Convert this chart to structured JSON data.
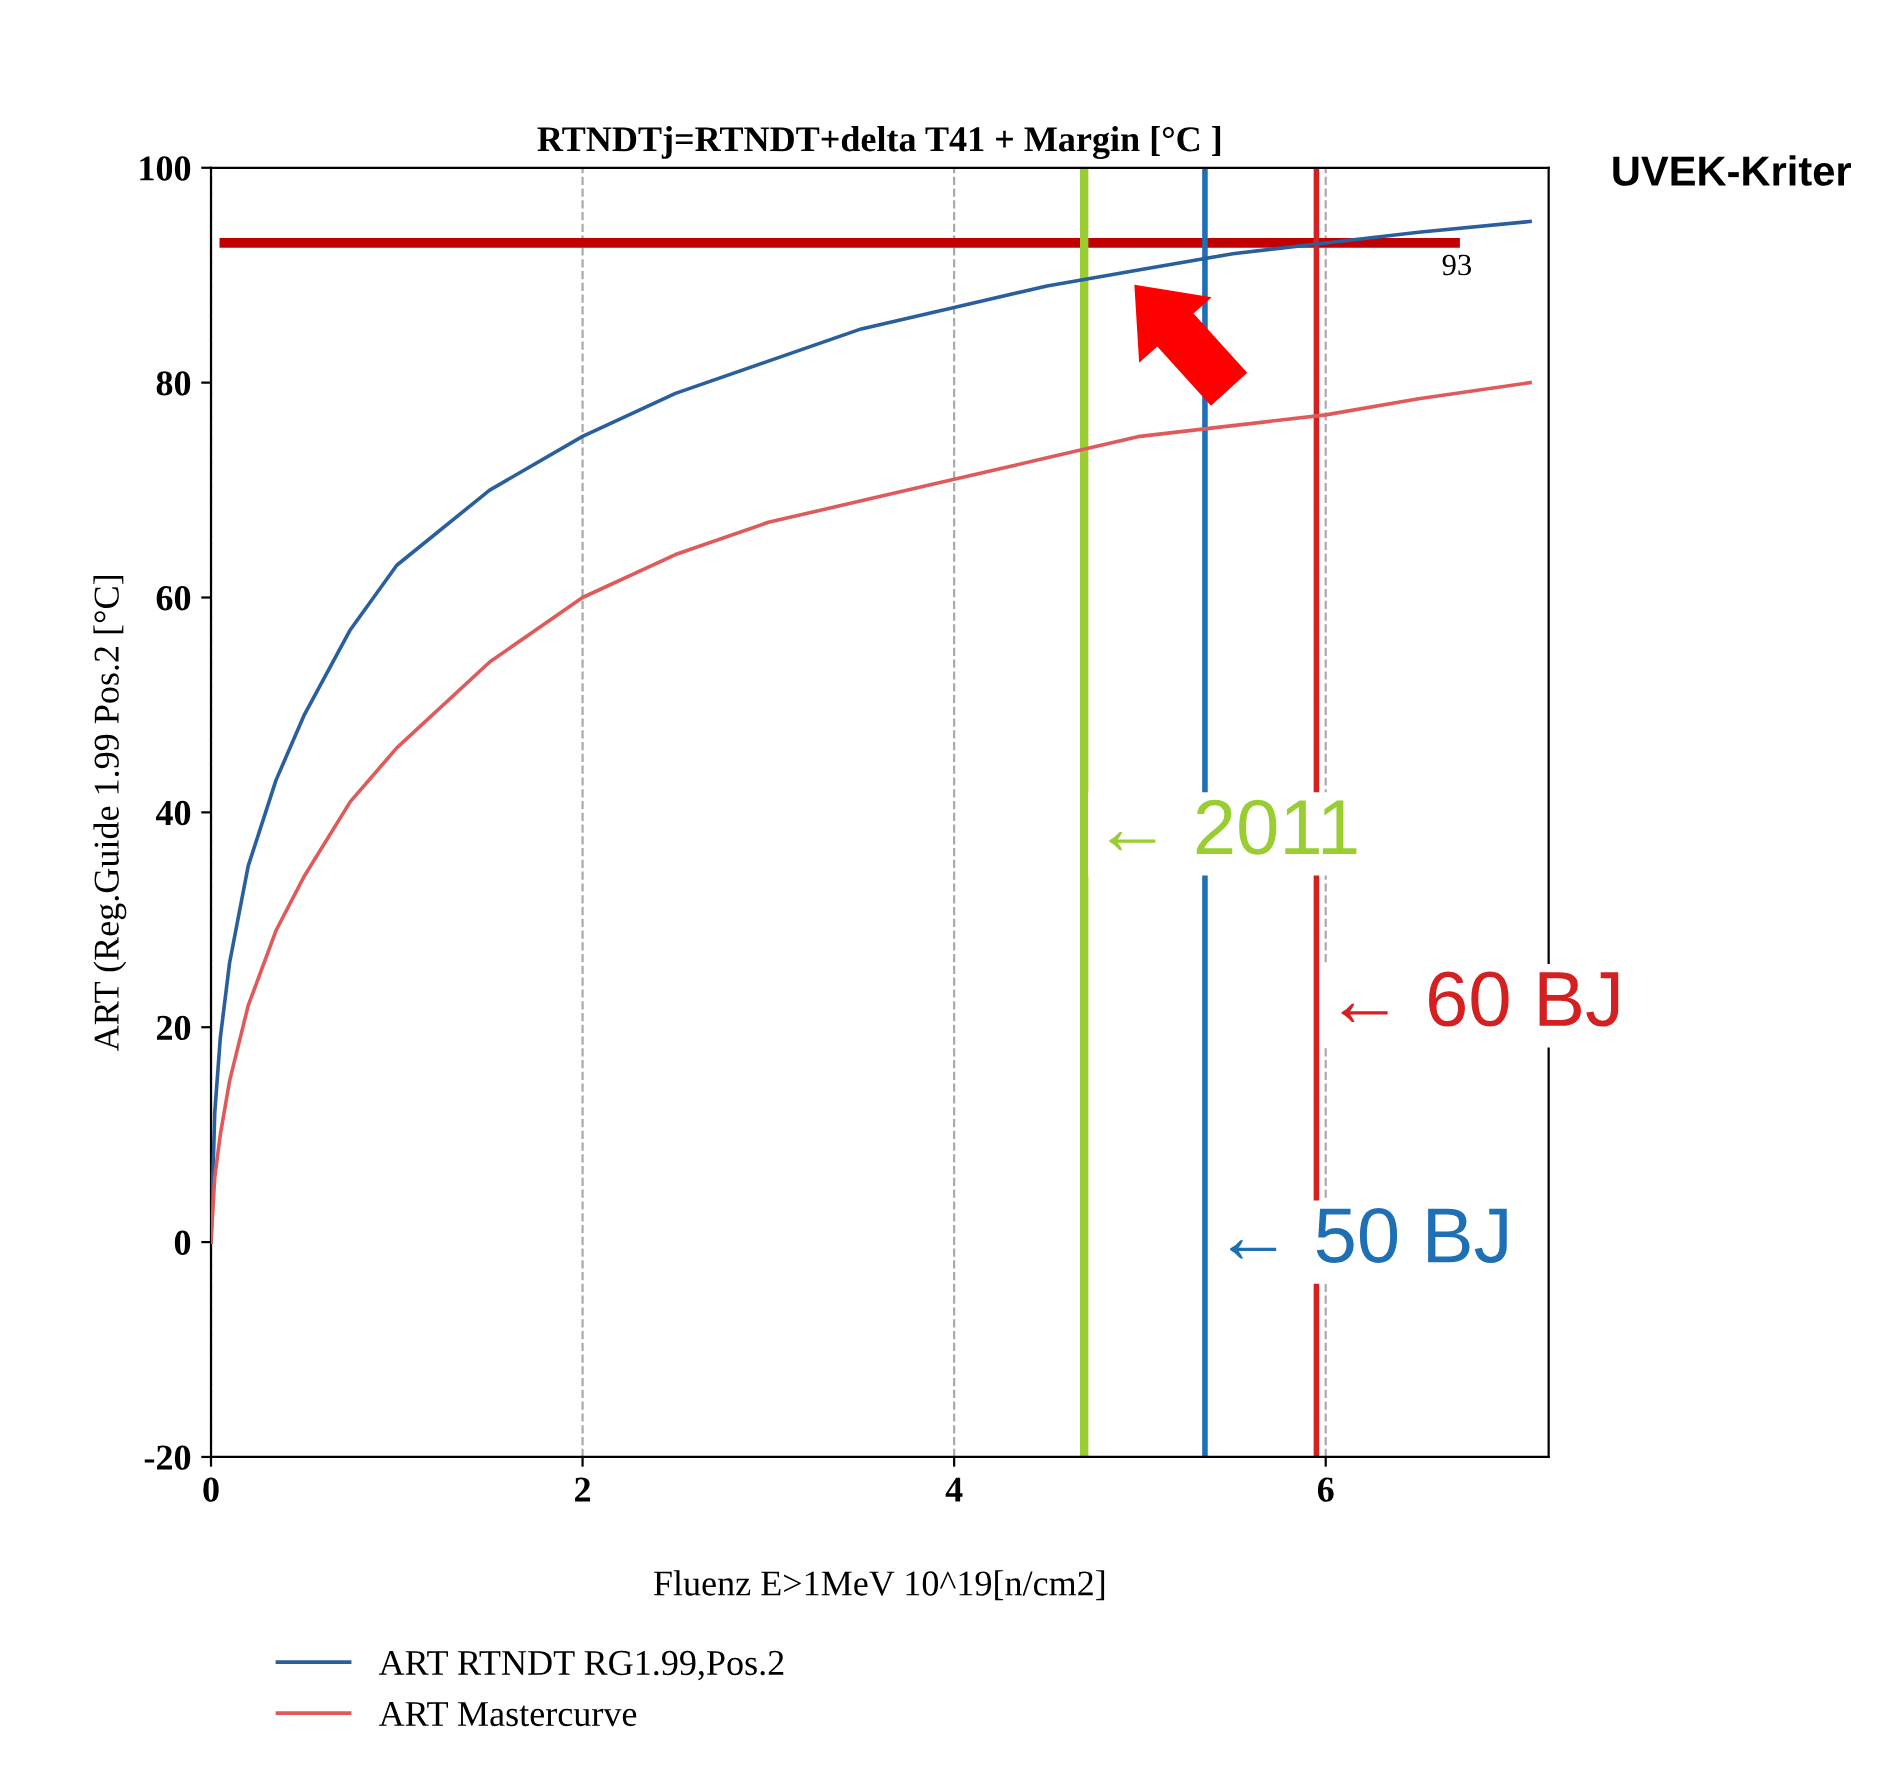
{
  "chart_data": {
    "type": "line",
    "title": "RTNDTj=RTNDT+delta T41 + Margin [°C ]",
    "xlabel": "Fluenz E>1MeV 10^19[n/cm2]",
    "ylabel": "ART (Reg.Guide 1.99 Pos.2 [°C]",
    "series": [
      {
        "name": "ART RTNDT RG1.99,Pos.2",
        "color": "#2a5f9e",
        "x": [
          0,
          0.02,
          0.05,
          0.1,
          0.2,
          0.35,
          0.5,
          0.75,
          1,
          1.5,
          2,
          2.5,
          3,
          3.5,
          4,
          4.5,
          5,
          5.5,
          6,
          6.5,
          7.1
        ],
        "values": [
          0,
          12,
          19,
          26,
          35,
          43,
          49,
          57,
          63,
          70,
          75,
          79,
          82,
          85,
          87,
          89,
          90.5,
          92,
          93,
          94,
          95
        ]
      },
      {
        "name": "ART Mastercurve",
        "color": "#e05a5a",
        "x": [
          0,
          0.02,
          0.05,
          0.1,
          0.2,
          0.35,
          0.5,
          0.75,
          1,
          1.5,
          2,
          2.5,
          3,
          3.5,
          4,
          4.5,
          5,
          5.5,
          6,
          6.5,
          7.1
        ],
        "values": [
          0,
          6,
          10,
          15,
          22,
          29,
          34,
          41,
          46,
          54,
          60,
          64,
          67,
          69,
          71,
          73,
          75,
          76,
          77,
          78.5,
          80
        ]
      }
    ],
    "xlim": [
      0,
      7.2
    ],
    "ylim": [
      -20,
      100
    ],
    "xticks": [
      0,
      2,
      4,
      6
    ],
    "yticks": [
      -20,
      0,
      20,
      40,
      60,
      80,
      100
    ],
    "grid": "x",
    "legend": "bottom left",
    "ref_lines": [
      {
        "axis": "y",
        "value": 93,
        "label": "93",
        "color": "#c00000"
      },
      {
        "axis": "x",
        "value": 4.7,
        "label": "← 2011",
        "color": "#9acd32"
      },
      {
        "axis": "x",
        "value": 5.35,
        "label": "← 50 BJ",
        "color": "#1f6fb5"
      },
      {
        "axis": "x",
        "value": 5.95,
        "label": "← 60 BJ",
        "color": "#d42020"
      }
    ],
    "annotations": [
      "UVEK-Kriter"
    ]
  }
}
